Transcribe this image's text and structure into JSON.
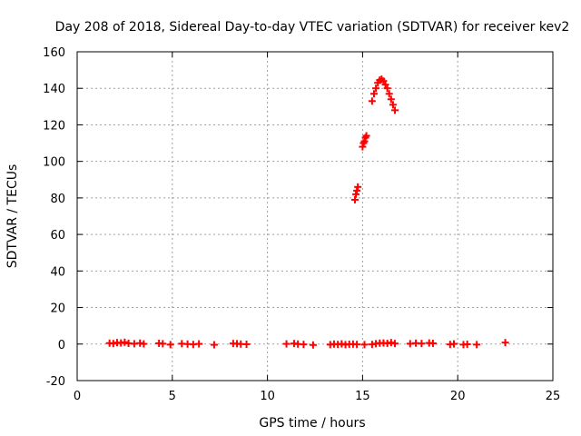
{
  "chart_data": {
    "type": "scatter",
    "title": "Day 208 of 2018, Sidereal Day-to-day VTEC variation (SDTVAR) for receiver kev2",
    "xlabel": "GPS time / hours",
    "ylabel": "SDTVAR / TECUs",
    "xlim": [
      0,
      25
    ],
    "ylim": [
      -20,
      160
    ],
    "xticks": [
      0,
      5,
      10,
      15,
      20,
      25
    ],
    "yticks": [
      -20,
      0,
      20,
      40,
      60,
      80,
      100,
      120,
      140,
      160
    ],
    "grid": true,
    "marker": "plus",
    "series": [
      {
        "name": "SDTVAR",
        "color": "#ff0000",
        "x": [
          1.7,
          1.9,
          2.1,
          2.3,
          2.5,
          2.7,
          3.0,
          3.3,
          3.5,
          4.3,
          4.5,
          4.9,
          5.5,
          5.8,
          6.1,
          6.4,
          7.2,
          8.2,
          8.4,
          8.6,
          8.9,
          11.0,
          11.4,
          11.6,
          11.9,
          12.4,
          13.3,
          13.5,
          13.7,
          13.9,
          14.1,
          14.3,
          14.5,
          14.7,
          15.1,
          15.5,
          15.7,
          15.9,
          16.1,
          16.3,
          16.5,
          16.7,
          17.5,
          17.8,
          18.1,
          18.5,
          18.7,
          19.6,
          19.8,
          20.3,
          20.5,
          21.0,
          22.5,
          14.6,
          14.65,
          14.7,
          14.75,
          15.0,
          15.05,
          15.1,
          15.15,
          15.2,
          15.5,
          15.6,
          15.7,
          15.8,
          15.9,
          16.0,
          16.1,
          16.2,
          16.3,
          16.4,
          16.5,
          16.6,
          16.7
        ],
        "y": [
          0.5,
          0.3,
          0.8,
          0.6,
          1.0,
          0.4,
          0.2,
          0.5,
          0.1,
          0.4,
          0.2,
          -0.3,
          0.2,
          0.0,
          -0.2,
          0.1,
          -0.4,
          0.3,
          0.2,
          0.0,
          -0.1,
          0.1,
          0.3,
          0.0,
          -0.2,
          -0.5,
          -0.3,
          0.0,
          -0.2,
          0.1,
          -0.3,
          -0.1,
          0.0,
          -0.2,
          -0.3,
          -0.2,
          0.2,
          0.5,
          0.6,
          0.4,
          0.8,
          0.3,
          0.2,
          0.5,
          0.3,
          0.6,
          0.4,
          -0.2,
          0.1,
          -0.3,
          -0.1,
          -0.3,
          0.8,
          79,
          82,
          84,
          86,
          108,
          110,
          111,
          113,
          114,
          133,
          137,
          140,
          143,
          144.5,
          145,
          144,
          142,
          140,
          137,
          134,
          131,
          128
        ]
      }
    ]
  }
}
